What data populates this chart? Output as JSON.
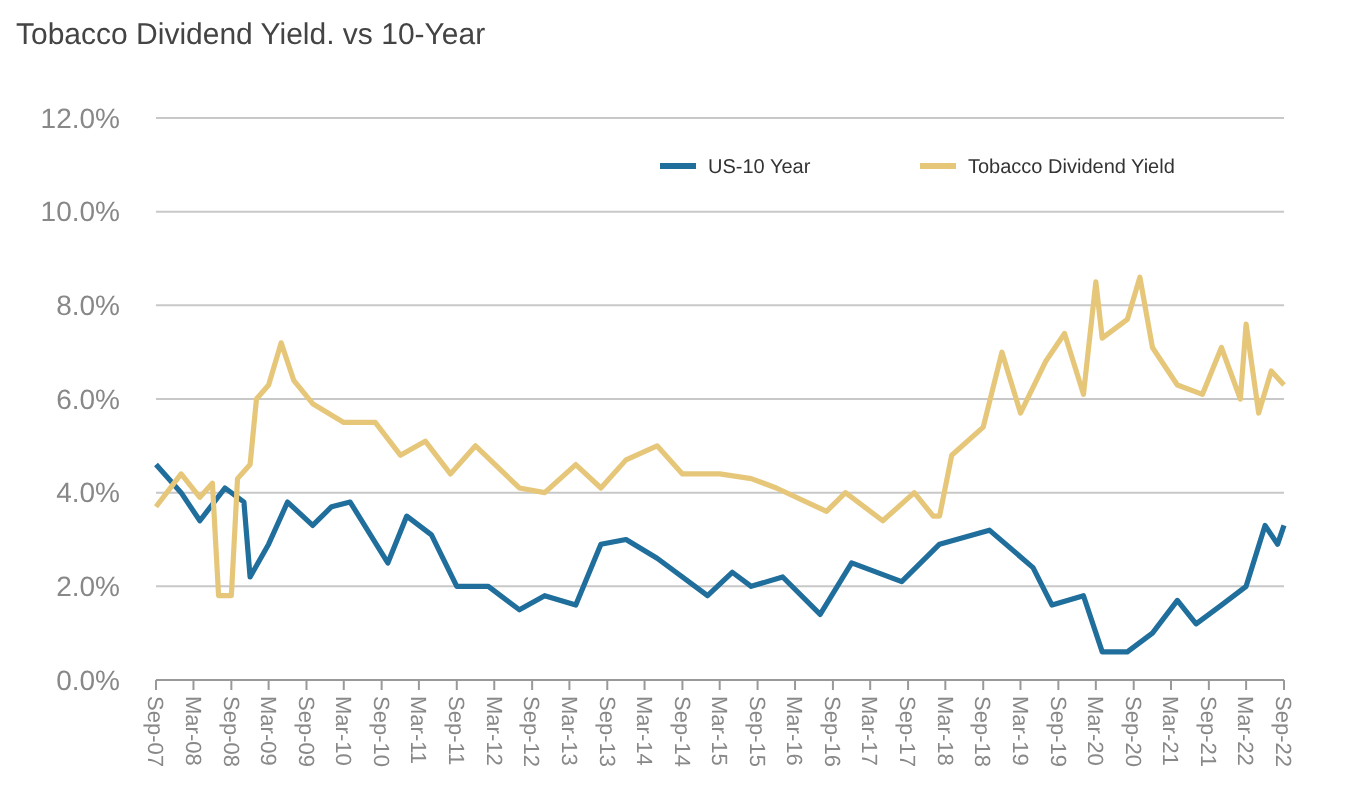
{
  "chart_data": {
    "type": "line",
    "title": "Tobacco Dividend Yield. vs 10-Year",
    "ylim": [
      0,
      12
    ],
    "yticks": [
      {
        "value": 0,
        "label": "0.0%"
      },
      {
        "value": 2,
        "label": "2.0%"
      },
      {
        "value": 4,
        "label": "4.0%"
      },
      {
        "value": 6,
        "label": "6.0%"
      },
      {
        "value": 8,
        "label": "8.0%"
      },
      {
        "value": 10,
        "label": "10.0%"
      },
      {
        "value": 12,
        "label": "12.0%"
      }
    ],
    "xlim": [
      "2007-09",
      "2022-09"
    ],
    "xticks": [
      {
        "value": "2007-09",
        "label": "Sep-07"
      },
      {
        "value": "2008-03",
        "label": "Mar-08"
      },
      {
        "value": "2008-09",
        "label": "Sep-08"
      },
      {
        "value": "2009-03",
        "label": "Mar-09"
      },
      {
        "value": "2009-09",
        "label": "Sep-09"
      },
      {
        "value": "2010-03",
        "label": "Mar-10"
      },
      {
        "value": "2010-09",
        "label": "Sep-10"
      },
      {
        "value": "2011-03",
        "label": "Mar-11"
      },
      {
        "value": "2011-09",
        "label": "Sep-11"
      },
      {
        "value": "2012-03",
        "label": "Mar-12"
      },
      {
        "value": "2012-09",
        "label": "Sep-12"
      },
      {
        "value": "2013-03",
        "label": "Mar-13"
      },
      {
        "value": "2013-09",
        "label": "Sep-13"
      },
      {
        "value": "2014-03",
        "label": "Mar-14"
      },
      {
        "value": "2014-09",
        "label": "Sep-14"
      },
      {
        "value": "2015-03",
        "label": "Mar-15"
      },
      {
        "value": "2015-09",
        "label": "Sep-15"
      },
      {
        "value": "2016-03",
        "label": "Mar-16"
      },
      {
        "value": "2016-09",
        "label": "Sep-16"
      },
      {
        "value": "2017-03",
        "label": "Mar-17"
      },
      {
        "value": "2017-09",
        "label": "Sep-17"
      },
      {
        "value": "2018-03",
        "label": "Mar-18"
      },
      {
        "value": "2018-09",
        "label": "Sep-18"
      },
      {
        "value": "2019-03",
        "label": "Mar-19"
      },
      {
        "value": "2019-09",
        "label": "Sep-19"
      },
      {
        "value": "2020-03",
        "label": "Mar-20"
      },
      {
        "value": "2020-09",
        "label": "Sep-20"
      },
      {
        "value": "2021-03",
        "label": "Mar-21"
      },
      {
        "value": "2021-09",
        "label": "Sep-21"
      },
      {
        "value": "2022-03",
        "label": "Mar-22"
      },
      {
        "value": "2022-09",
        "label": "Sep-22"
      }
    ],
    "grid": "y",
    "legend": "top right",
    "line_style": "solid",
    "series": [
      {
        "name": "US-10 Year",
        "color": "#1f6e9c",
        "x": [
          "2007-09",
          "2008-01",
          "2008-04",
          "2008-08",
          "2008-11",
          "2008-12",
          "2009-03",
          "2009-06",
          "2009-10",
          "2010-01",
          "2010-04",
          "2010-10",
          "2011-01",
          "2011-05",
          "2011-09",
          "2012-02",
          "2012-07",
          "2012-11",
          "2013-04",
          "2013-08",
          "2013-12",
          "2014-05",
          "2015-01",
          "2015-05",
          "2015-08",
          "2016-01",
          "2016-07",
          "2016-12",
          "2017-08",
          "2018-02",
          "2018-10",
          "2019-05",
          "2019-08",
          "2020-01",
          "2020-04",
          "2020-08",
          "2020-12",
          "2021-04",
          "2021-07",
          "2021-11",
          "2022-03",
          "2022-06",
          "2022-08",
          "2022-09"
        ],
        "values": [
          4.6,
          4.0,
          3.4,
          4.1,
          3.8,
          2.2,
          2.9,
          3.8,
          3.3,
          3.7,
          3.8,
          2.5,
          3.5,
          3.1,
          2.0,
          2.0,
          1.5,
          1.8,
          1.6,
          2.9,
          3.0,
          2.6,
          1.8,
          2.3,
          2.0,
          2.2,
          1.4,
          2.5,
          2.1,
          2.9,
          3.2,
          2.4,
          1.6,
          1.8,
          0.6,
          0.6,
          1.0,
          1.7,
          1.2,
          1.6,
          2.0,
          3.3,
          2.9,
          3.3
        ]
      },
      {
        "name": "Tobacco Dividend Yield",
        "color": "#e6c77a",
        "x": [
          "2007-09",
          "2008-01",
          "2008-04",
          "2008-06",
          "2008-07",
          "2008-09",
          "2008-10",
          "2008-12",
          "2009-01",
          "2009-03",
          "2009-05",
          "2009-07",
          "2009-10",
          "2010-03",
          "2010-08",
          "2010-12",
          "2011-04",
          "2011-08",
          "2011-12",
          "2012-07",
          "2012-11",
          "2013-04",
          "2013-08",
          "2013-12",
          "2014-05",
          "2014-09",
          "2015-03",
          "2015-08",
          "2015-12",
          "2016-08",
          "2016-11",
          "2017-05",
          "2017-10",
          "2018-01",
          "2018-02",
          "2018-04",
          "2018-09",
          "2018-12",
          "2019-03",
          "2019-07",
          "2019-10",
          "2020-01",
          "2020-03",
          "2020-04",
          "2020-08",
          "2020-10",
          "2020-12",
          "2021-04",
          "2021-08",
          "2021-11",
          "2022-02",
          "2022-03",
          "2022-05",
          "2022-07",
          "2022-09"
        ],
        "values": [
          3.7,
          4.4,
          3.9,
          4.2,
          1.8,
          1.8,
          4.3,
          4.6,
          6.0,
          6.3,
          7.2,
          6.4,
          5.9,
          5.5,
          5.5,
          4.8,
          5.1,
          4.4,
          5.0,
          4.1,
          4.0,
          4.6,
          4.1,
          4.7,
          5.0,
          4.4,
          4.4,
          4.3,
          4.1,
          3.6,
          4.0,
          3.4,
          4.0,
          3.5,
          3.5,
          4.8,
          5.4,
          7.0,
          5.7,
          6.8,
          7.4,
          6.1,
          8.5,
          7.3,
          7.7,
          8.6,
          7.1,
          6.3,
          6.1,
          7.1,
          6.0,
          7.6,
          5.7,
          6.6,
          6.3
        ]
      }
    ]
  }
}
